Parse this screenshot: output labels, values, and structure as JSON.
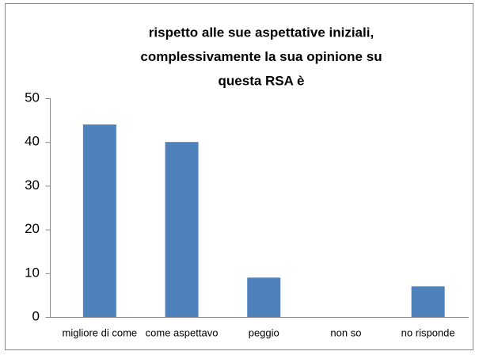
{
  "chart_data": {
    "type": "bar",
    "title": [
      "rispetto alle sue aspettative iniziali,",
      "complessivamente la sua opinione su",
      "questa RSA è"
    ],
    "categories": [
      "migliore di come",
      "come aspettavo",
      "peggio",
      "non so",
      "no risponde"
    ],
    "values": [
      44,
      40,
      9,
      0,
      7
    ],
    "color": "#4f81bd",
    "ylim": [
      0,
      50
    ],
    "yticks": [
      0,
      10,
      20,
      30,
      40,
      50
    ],
    "grid": false
  }
}
